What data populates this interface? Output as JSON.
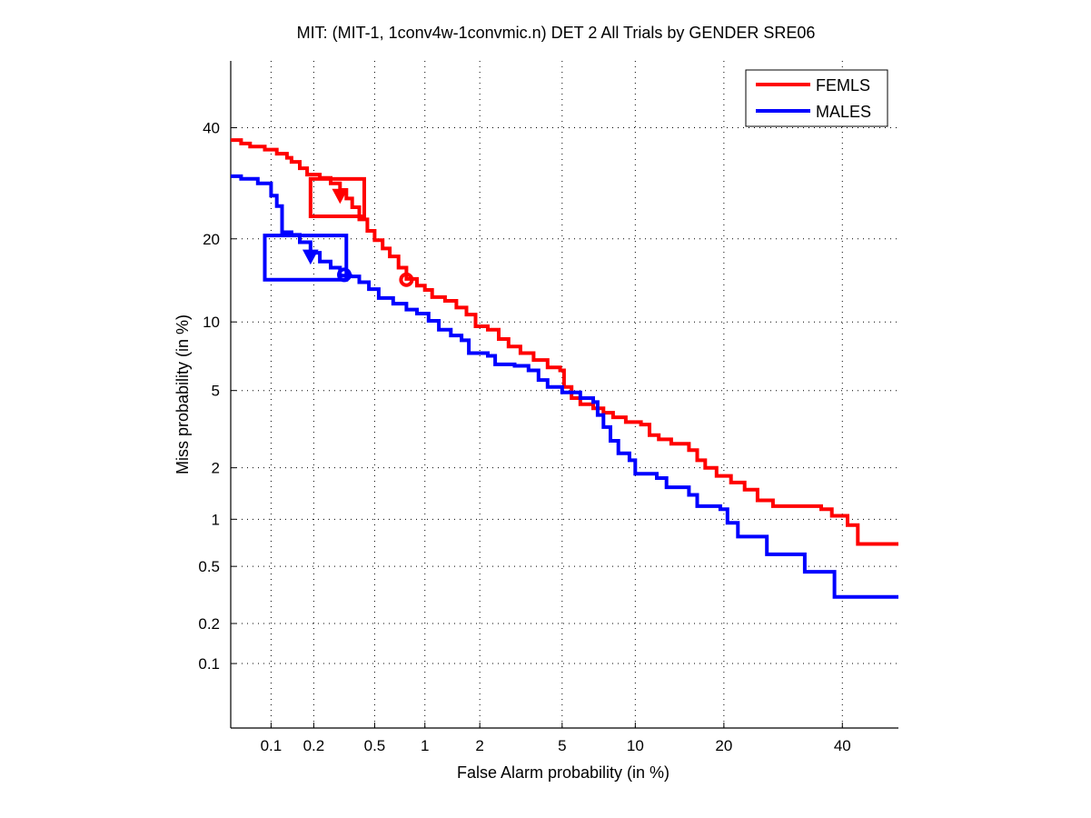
{
  "chart_data": {
    "type": "line",
    "title": "MIT: (MIT-1, 1conv4w-1convmic.n) DET 2 All Trials by GENDER SRE06",
    "xlabel": "False Alarm probability (in %)",
    "ylabel": "Miss probability (in %)",
    "x_scale": "normal-deviate",
    "y_scale": "normal-deviate",
    "xlim": [
      0.05,
      51
    ],
    "ylim": [
      0.03,
      54
    ],
    "xticks": [
      0.1,
      0.2,
      0.5,
      1,
      2,
      5,
      10,
      20,
      40
    ],
    "xtick_labels": [
      "0.1",
      "0.2",
      "0.5",
      "1",
      "2",
      "5",
      "10",
      "20",
      "40"
    ],
    "yticks": [
      0.1,
      0.2,
      0.5,
      1,
      2,
      5,
      10,
      20,
      40
    ],
    "ytick_labels": [
      "0.1",
      "0.2",
      "0.5",
      "1",
      "2",
      "5",
      "10",
      "20",
      "40"
    ],
    "grid": true,
    "legend_position": "top-right",
    "series": [
      {
        "name": "FEMLS",
        "color": "#ff0000",
        "points": [
          [
            0.05,
            37.5
          ],
          [
            0.06,
            36.8
          ],
          [
            0.07,
            36.2
          ],
          [
            0.09,
            35.6
          ],
          [
            0.11,
            34.8
          ],
          [
            0.13,
            34.0
          ],
          [
            0.14,
            33.2
          ],
          [
            0.16,
            32.0
          ],
          [
            0.18,
            30.8
          ],
          [
            0.22,
            30.2
          ],
          [
            0.26,
            29.2
          ],
          [
            0.3,
            28.0
          ],
          [
            0.33,
            26.5
          ],
          [
            0.36,
            25.0
          ],
          [
            0.4,
            23.0
          ],
          [
            0.45,
            21.2
          ],
          [
            0.5,
            19.8
          ],
          [
            0.56,
            18.6
          ],
          [
            0.62,
            17.5
          ],
          [
            0.7,
            16.0
          ],
          [
            0.78,
            14.6
          ],
          [
            0.9,
            13.8
          ],
          [
            1.0,
            13.3
          ],
          [
            1.1,
            12.5
          ],
          [
            1.3,
            12.1
          ],
          [
            1.5,
            11.4
          ],
          [
            1.7,
            10.7
          ],
          [
            1.9,
            9.6
          ],
          [
            2.2,
            9.3
          ],
          [
            2.5,
            8.5
          ],
          [
            2.8,
            7.9
          ],
          [
            3.2,
            7.4
          ],
          [
            3.7,
            6.9
          ],
          [
            4.3,
            6.4
          ],
          [
            4.9,
            6.2
          ],
          [
            5.1,
            5.2
          ],
          [
            5.5,
            4.6
          ],
          [
            6.0,
            4.3
          ],
          [
            6.8,
            4.1
          ],
          [
            7.5,
            3.9
          ],
          [
            8.2,
            3.7
          ],
          [
            9.2,
            3.5
          ],
          [
            10.5,
            3.4
          ],
          [
            11.3,
            3.0
          ],
          [
            12.2,
            2.85
          ],
          [
            13.5,
            2.7
          ],
          [
            15.5,
            2.5
          ],
          [
            16.5,
            2.2
          ],
          [
            17.5,
            2.0
          ],
          [
            19.0,
            1.8
          ],
          [
            21.0,
            1.65
          ],
          [
            23.0,
            1.5
          ],
          [
            25.0,
            1.3
          ],
          [
            27.5,
            1.2
          ],
          [
            36.0,
            1.15
          ],
          [
            38.0,
            1.05
          ],
          [
            41.0,
            0.92
          ],
          [
            43.0,
            0.7
          ],
          [
            51.0,
            0.7
          ]
        ],
        "marker": {
          "type": "down-triangle",
          "x": 0.3,
          "y": 27.0
        }
      },
      {
        "name": "MALES",
        "color": "#0000ff",
        "points": [
          [
            0.05,
            30.5
          ],
          [
            0.06,
            30.0
          ],
          [
            0.08,
            29.2
          ],
          [
            0.1,
            27.0
          ],
          [
            0.11,
            25.2
          ],
          [
            0.12,
            21.0
          ],
          [
            0.14,
            20.6
          ],
          [
            0.16,
            19.5
          ],
          [
            0.19,
            18.0
          ],
          [
            0.22,
            16.8
          ],
          [
            0.26,
            16.0
          ],
          [
            0.3,
            15.0
          ],
          [
            0.35,
            14.9
          ],
          [
            0.4,
            14.2
          ],
          [
            0.46,
            13.4
          ],
          [
            0.53,
            12.4
          ],
          [
            0.65,
            11.8
          ],
          [
            0.78,
            11.2
          ],
          [
            0.9,
            10.8
          ],
          [
            1.05,
            10.1
          ],
          [
            1.2,
            9.3
          ],
          [
            1.4,
            8.8
          ],
          [
            1.6,
            8.4
          ],
          [
            1.75,
            7.4
          ],
          [
            2.2,
            7.2
          ],
          [
            2.4,
            6.6
          ],
          [
            3.0,
            6.5
          ],
          [
            3.5,
            6.2
          ],
          [
            3.9,
            5.6
          ],
          [
            4.3,
            5.2
          ],
          [
            5.0,
            4.9
          ],
          [
            6.0,
            4.6
          ],
          [
            6.8,
            4.4
          ],
          [
            7.1,
            3.8
          ],
          [
            7.5,
            3.3
          ],
          [
            8.0,
            2.8
          ],
          [
            8.6,
            2.4
          ],
          [
            9.5,
            2.2
          ],
          [
            10.0,
            1.85
          ],
          [
            12.0,
            1.75
          ],
          [
            13.0,
            1.55
          ],
          [
            15.5,
            1.4
          ],
          [
            16.5,
            1.2
          ],
          [
            19.5,
            1.15
          ],
          [
            20.5,
            0.95
          ],
          [
            22.0,
            0.78
          ],
          [
            26.5,
            0.6
          ],
          [
            33.0,
            0.46
          ],
          [
            38.5,
            0.31
          ],
          [
            51.0,
            0.31
          ]
        ],
        "marker": {
          "type": "down-triangle",
          "x": 0.19,
          "y": 17.5
        }
      }
    ],
    "annotations": [
      {
        "type": "confidence-box",
        "series": "FEMLS",
        "x_range": [
          0.19,
          0.43
        ],
        "y_range": [
          23.5,
          30.0
        ]
      },
      {
        "type": "confidence-box",
        "series": "MALES",
        "x_range": [
          0.09,
          0.33
        ],
        "y_range": [
          14.5,
          20.5
        ]
      },
      {
        "type": "circle-marker",
        "series": "FEMLS",
        "x": 0.78,
        "y": 14.5
      },
      {
        "type": "circle-marker",
        "series": "MALES",
        "x": 0.32,
        "y": 15.1
      }
    ]
  }
}
